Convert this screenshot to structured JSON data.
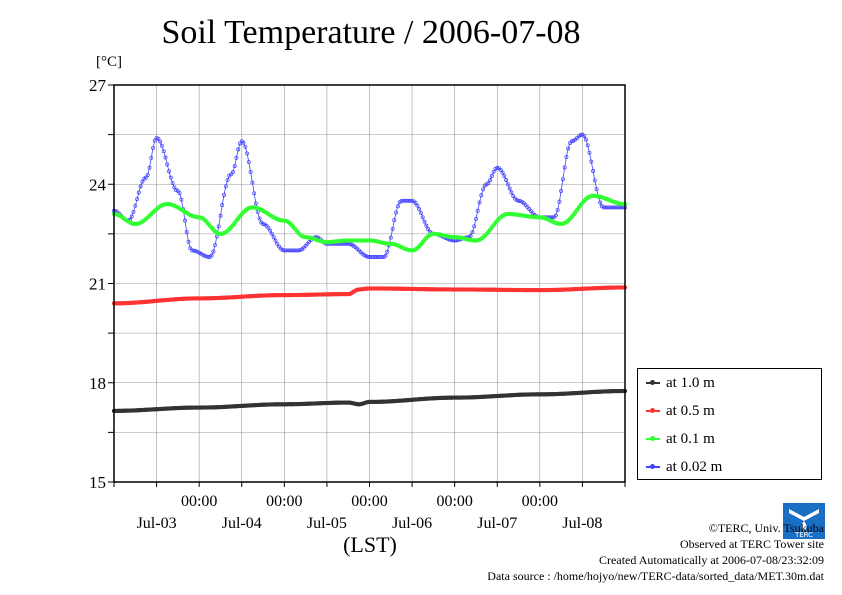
{
  "chart_data": {
    "type": "line",
    "title": "Soil Temperature / 2006-07-08",
    "ylabel": "[°C]",
    "xlabel": "(LST)",
    "ylim": [
      15,
      27
    ],
    "yticks": [
      15,
      18,
      21,
      24,
      27
    ],
    "xlim": [
      "2006-07-02T12:00",
      "2006-07-08T12:00"
    ],
    "x_time_labels": [
      "00:00",
      "00:00",
      "00:00",
      "00:00",
      "00:00"
    ],
    "x_day_labels": [
      "Jul-03",
      "Jul-04",
      "Jul-05",
      "Jul-06",
      "Jul-07",
      "Jul-08"
    ],
    "grid": true,
    "legend_position": "right",
    "series": [
      {
        "name": "at 1.0 m",
        "color": "#333333",
        "x": [
          "2006-07-02T12:00",
          "2006-07-03T12:00",
          "2006-07-04T12:00",
          "2006-07-05T06:00",
          "2006-07-05T09:00",
          "2006-07-05T12:00",
          "2006-07-06T12:00",
          "2006-07-07T12:00",
          "2006-07-08T12:00"
        ],
        "y": [
          17.15,
          17.25,
          17.35,
          17.4,
          17.35,
          17.42,
          17.55,
          17.65,
          17.75
        ]
      },
      {
        "name": "at 0.5 m",
        "color": "#ff3333",
        "x": [
          "2006-07-02T12:00",
          "2006-07-03T12:00",
          "2006-07-04T12:00",
          "2006-07-05T06:00",
          "2006-07-05T09:00",
          "2006-07-05T12:00",
          "2006-07-06T12:00",
          "2006-07-07T12:00",
          "2006-07-08T12:00"
        ],
        "y": [
          20.4,
          20.55,
          20.65,
          20.68,
          20.82,
          20.85,
          20.82,
          20.8,
          20.88
        ]
      },
      {
        "name": "at 0.1 m",
        "color": "#33ff33",
        "x": [
          "2006-07-02T12:00",
          "2006-07-02T18:00",
          "2006-07-03T03:00",
          "2006-07-03T12:00",
          "2006-07-03T18:00",
          "2006-07-04T03:00",
          "2006-07-04T12:00",
          "2006-07-04T18:00",
          "2006-07-05T00:00",
          "2006-07-05T06:00",
          "2006-07-05T12:00",
          "2006-07-05T18:00",
          "2006-07-06T00:00",
          "2006-07-06T06:00",
          "2006-07-06T12:00",
          "2006-07-06T18:00",
          "2006-07-07T03:00",
          "2006-07-07T12:00",
          "2006-07-07T18:00",
          "2006-07-08T03:00",
          "2006-07-08T12:00"
        ],
        "y": [
          23.1,
          22.8,
          23.4,
          23.0,
          22.5,
          23.3,
          22.9,
          22.4,
          22.25,
          22.3,
          22.3,
          22.2,
          22.0,
          22.5,
          22.4,
          22.3,
          23.1,
          23.0,
          22.8,
          23.65,
          23.4
        ]
      },
      {
        "name": "at 0.02 m",
        "color": "#4444ff",
        "x": [
          "2006-07-02T12:00",
          "2006-07-02T16:00",
          "2006-07-02T21:00",
          "2006-07-03T00:00",
          "2006-07-03T06:00",
          "2006-07-03T10:00",
          "2006-07-03T15:00",
          "2006-07-03T21:00",
          "2006-07-04T00:00",
          "2006-07-04T06:00",
          "2006-07-04T12:00",
          "2006-07-04T16:00",
          "2006-07-04T21:00",
          "2006-07-05T00:00",
          "2006-07-05T06:00",
          "2006-07-05T12:00",
          "2006-07-05T16:00",
          "2006-07-05T21:00",
          "2006-07-06T00:00",
          "2006-07-06T06:00",
          "2006-07-06T12:00",
          "2006-07-06T16:00",
          "2006-07-06T21:00",
          "2006-07-07T00:00",
          "2006-07-07T06:00",
          "2006-07-07T12:00",
          "2006-07-07T16:00",
          "2006-07-07T21:00",
          "2006-07-08T00:00",
          "2006-07-08T06:00",
          "2006-07-08T12:00"
        ],
        "y": [
          23.2,
          22.9,
          24.2,
          25.4,
          23.8,
          22.0,
          21.8,
          24.3,
          25.3,
          22.8,
          22.0,
          22.0,
          22.4,
          22.2,
          22.2,
          21.8,
          21.8,
          23.5,
          23.5,
          22.5,
          22.3,
          22.4,
          24.0,
          24.5,
          23.5,
          23.0,
          23.0,
          25.3,
          25.5,
          23.3,
          23.3
        ]
      }
    ]
  },
  "credits": {
    "line1": "©TERC, Univ. Tsukuba",
    "line2": "Observed at TERC Tower site",
    "line3": "Created Automatically at 2006-07-08/23:32:09",
    "line4": "Data source : /home/hojyo/new/TERC-data/sorted_data/MET.30m.dat"
  },
  "logo": {
    "name": "terc-logo",
    "text": "TERC",
    "color": "#1a6fc4"
  }
}
